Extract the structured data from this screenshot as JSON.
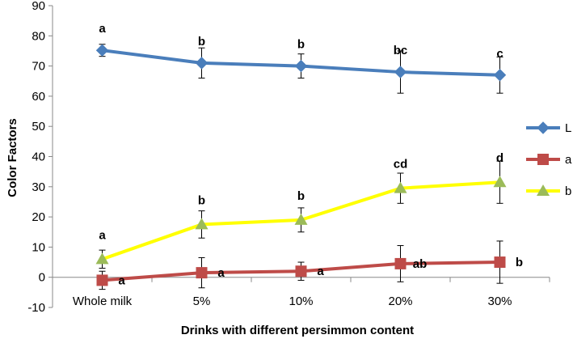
{
  "chart_data": {
    "type": "line",
    "xlabel": "Drinks with different persimmon content",
    "ylabel": "Color Factors",
    "categories": [
      "Whole milk",
      "5%",
      "10%",
      "20%",
      "30%"
    ],
    "ylim": [
      -10,
      90
    ],
    "yticks": [
      -10,
      0,
      10,
      20,
      30,
      40,
      50,
      60,
      70,
      80,
      90
    ],
    "grid": false,
    "legend_position": "right",
    "series": [
      {
        "name": "L",
        "color": "#4a7ebb",
        "marker": "diamond",
        "values": [
          75.2,
          71,
          70,
          68,
          67
        ],
        "error": [
          2,
          5,
          4,
          7,
          6
        ],
        "labels": [
          "a",
          "b",
          "b",
          "bc",
          "c"
        ]
      },
      {
        "name": "a",
        "color": "#be4b48",
        "marker": "square",
        "values": [
          -1,
          1.5,
          2,
          4.5,
          5
        ],
        "error": [
          3,
          5,
          3,
          6,
          7
        ],
        "labels": [
          "a",
          "a",
          "a",
          "ab",
          "b"
        ]
      },
      {
        "name": "b",
        "color": "#ffff00",
        "marker": "triangle",
        "marker_color": "#9bbb59",
        "values": [
          6,
          17.5,
          19,
          29.5,
          31.5
        ],
        "error": [
          3,
          4.5,
          4,
          5,
          7
        ],
        "labels": [
          "a",
          "b",
          "b",
          "cd",
          "d"
        ]
      }
    ]
  }
}
